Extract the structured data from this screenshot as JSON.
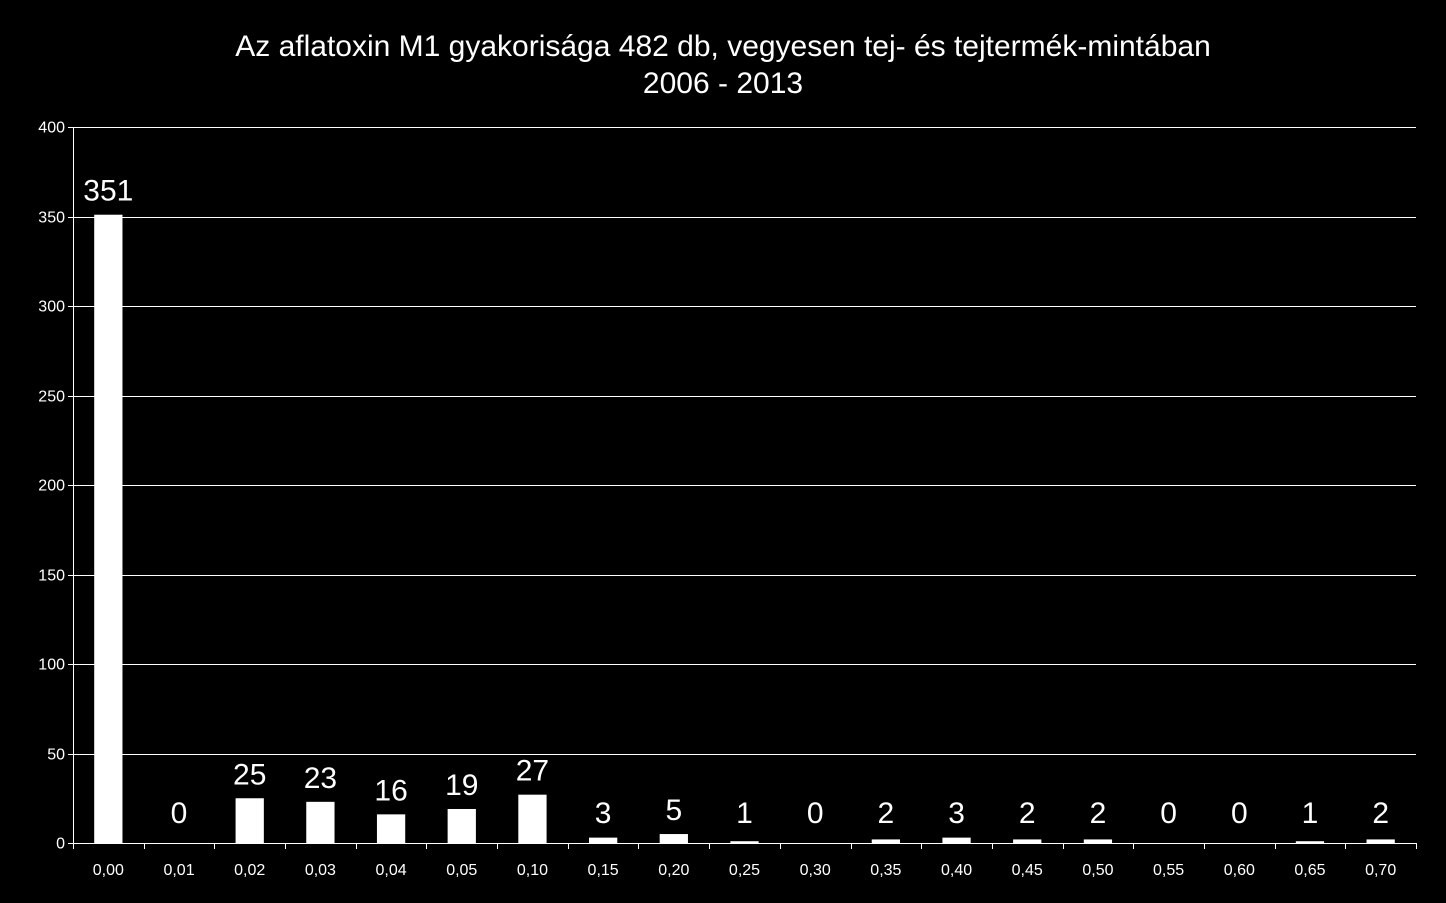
{
  "chart_data": {
    "type": "bar",
    "title_lines": [
      "Az aflatoxin M1 gyakorisága 482 db, vegyesen tej- és tejtermék-mintában",
      "2006 - 2013"
    ],
    "categories": [
      "0,00",
      "0,01",
      "0,02",
      "0,03",
      "0,04",
      "0,05",
      "0,10",
      "0,15",
      "0,20",
      "0,25",
      "0,30",
      "0,35",
      "0,40",
      "0,45",
      "0,50",
      "0,55",
      "0,60",
      "0,65",
      "0,70"
    ],
    "values": [
      351,
      0,
      25,
      23,
      16,
      19,
      27,
      3,
      5,
      1,
      0,
      2,
      3,
      2,
      2,
      0,
      0,
      1,
      2
    ],
    "data_labels": [
      "351",
      "0",
      "25",
      "23",
      "16",
      "19",
      "27",
      "3",
      "5",
      "1",
      "0",
      "2",
      "3",
      "2",
      "2",
      "0",
      "0",
      "1",
      "2"
    ],
    "ylim": [
      0,
      400
    ],
    "yticks": [
      0,
      50,
      100,
      150,
      200,
      250,
      300,
      350,
      400
    ],
    "grid": true,
    "xlabel": "",
    "ylabel": "",
    "colors": {
      "background": "#000000",
      "bars": "#ffffff",
      "grid": "#ffffff",
      "text": "#ffffff"
    }
  }
}
